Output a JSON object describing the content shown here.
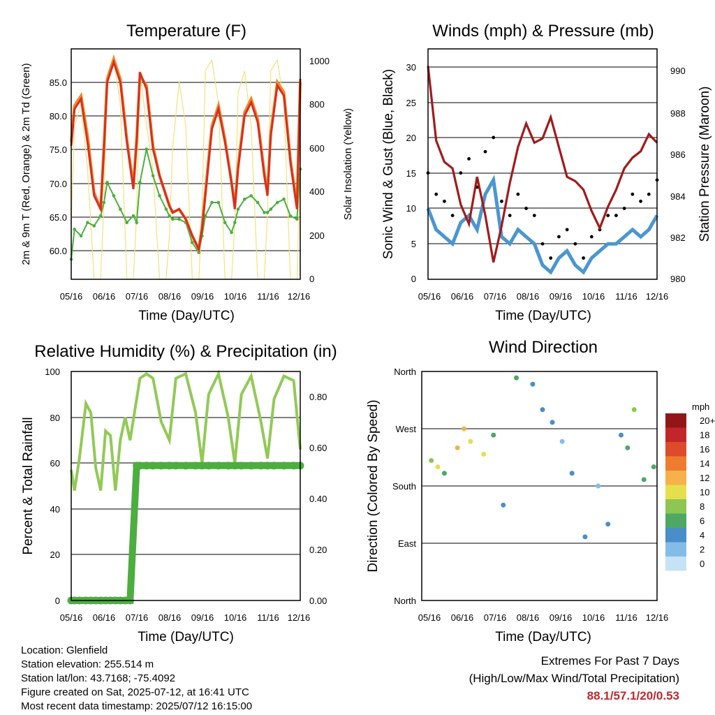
{
  "x_ticks": [
    "05/16",
    "06/16",
    "07/16",
    "08/16",
    "09/16",
    "10/16",
    "11/16",
    "12/16"
  ],
  "x_title": "Time (Day/UTC)",
  "colors": {
    "temp_2m": "#d82f1e",
    "temp_9m": "#f08a2a",
    "dewpoint": "#4cae3f",
    "solar": "#f6e07a",
    "wind": "#4a96d1",
    "gust": "#000000",
    "pressure": "#a01b1b",
    "rh": "#92c957",
    "precip": "#4cae3f"
  },
  "panels": {
    "temperature": {
      "title": "Temperature (F)",
      "ylabel": "2m & 9m T (Red, Orange) & 2m Td (Green)",
      "ylabel2": "Solar Insolation (Yellow)",
      "y_ticks": [
        "60.0",
        "65.0",
        "70.0",
        "75.0",
        "80.0",
        "85.0"
      ],
      "y2_ticks": [
        "0",
        "200",
        "400",
        "600",
        "800",
        "1000"
      ]
    },
    "winds": {
      "title": "Winds (mph) & Pressure (mb)",
      "ylabel": "Sonic Wind & Gust (Blue, Black)",
      "ylabel2": "Station Pressure (Maroon)",
      "y_ticks": [
        "0",
        "5",
        "10",
        "15",
        "20",
        "25",
        "30"
      ],
      "y2_ticks": [
        "980",
        "982",
        "984",
        "986",
        "988",
        "990"
      ]
    },
    "humidity": {
      "title": "Relative Humidity (%) & Precipitation (in)",
      "ylabel": "Percent & Total Rainfall",
      "y_ticks": [
        "0",
        "20",
        "40",
        "60",
        "80",
        "100"
      ],
      "y2_ticks": [
        "0.00",
        "0.20",
        "0.40",
        "0.60",
        "0.80"
      ]
    },
    "direction": {
      "title": "Wind Direction",
      "ylabel": "Direction (Colored By Speed)",
      "y_ticks": [
        "North",
        "East",
        "South",
        "West",
        "North"
      ],
      "legend_title": "mph",
      "legend_labels": [
        "0",
        "2",
        "4",
        "6",
        "8",
        "10",
        "12",
        "14",
        "16",
        "18",
        "20+"
      ],
      "legend_colors": [
        "#c6e3f5",
        "#83bde7",
        "#4a8ec9",
        "#4da864",
        "#8dc653",
        "#e6df4d",
        "#f7b14a",
        "#ef7c2e",
        "#de4a2c",
        "#c3262a",
        "#921617"
      ]
    }
  },
  "footer": {
    "location": "Location: Glenfield",
    "elevation": "Station elevation: 255.514 m",
    "latlon": "Station lat/lon: 43.7168; -75.4092",
    "created": "Figure created on Sat, 2025-07-12, at 16:41 UTC",
    "recent": "Most recent data timestamp: 2025/07/12 16:15:00"
  },
  "extremes": {
    "line1": "Extremes For Past 7 Days",
    "line2": "(High/Low/Max Wind/Total Precipitation)",
    "values": "88.1/57.1/20/0.53"
  },
  "chart_data": [
    {
      "type": "line",
      "title": "Temperature (F)",
      "xlabel": "Time (Day/UTC)",
      "x": [
        0,
        0.1,
        0.3,
        0.5,
        0.7,
        0.9,
        1,
        1.1,
        1.3,
        1.5,
        1.7,
        1.9,
        2,
        2.1,
        2.3,
        2.5,
        2.7,
        2.9,
        3,
        3.1,
        3.3,
        3.5,
        3.7,
        3.9,
        4,
        4.1,
        4.3,
        4.5,
        4.7,
        4.9,
        5,
        5.1,
        5.3,
        5.5,
        5.7,
        5.9,
        6,
        6.1,
        6.3,
        6.5,
        6.7,
        6.9,
        7
      ],
      "series": [
        {
          "name": "2m T",
          "values": [
            75.5,
            81,
            82.5,
            76,
            68,
            66,
            75,
            85,
            88,
            85,
            76,
            69,
            76,
            86.5,
            84,
            75,
            71,
            68,
            66.5,
            65.5,
            66,
            64.5,
            62,
            60,
            63,
            68,
            78,
            81,
            76,
            70,
            66,
            72,
            80,
            82,
            79,
            71,
            68,
            77,
            84.5,
            83,
            73,
            66,
            85.5
          ]
        },
        {
          "name": "9m T",
          "values": [
            76,
            81.5,
            83,
            77,
            68.5,
            66,
            75.5,
            85.5,
            88.5,
            85.5,
            76.5,
            69.5,
            76.5,
            86,
            84.5,
            75.5,
            71,
            68,
            66.5,
            65.5,
            66,
            64.5,
            62,
            60,
            63.5,
            68.5,
            78.5,
            81.5,
            76.5,
            70,
            66.5,
            72.5,
            80.5,
            82.5,
            79.5,
            71.5,
            68.5,
            77.5,
            85,
            83.5,
            73.5,
            66.5,
            85
          ]
        },
        {
          "name": "2m Td",
          "values": [
            58.5,
            63,
            62,
            64,
            63.5,
            65,
            67,
            70,
            68,
            66,
            64,
            65,
            64,
            70,
            75,
            71,
            68,
            66,
            65,
            64.5,
            64.5,
            64,
            61,
            59.5,
            62,
            65,
            67,
            67,
            64,
            62.5,
            64,
            66,
            67.5,
            68,
            67,
            65.5,
            65.5,
            66,
            67,
            67.5,
            65,
            64.5,
            72
          ]
        },
        {
          "name": "Solar",
          "values": [
            250,
            700,
            800,
            500,
            0,
            0,
            350,
            900,
            1000,
            800,
            0,
            0,
            300,
            950,
            700,
            500,
            0,
            0,
            200,
            600,
            900,
            700,
            0,
            0,
            300,
            950,
            1000,
            800,
            0,
            0,
            250,
            850,
            950,
            700,
            0,
            0,
            300,
            950,
            1000,
            800,
            0,
            0,
            500
          ]
        }
      ],
      "ylim": [
        55.5,
        90
      ],
      "y2lim": [
        0,
        1050
      ]
    },
    {
      "type": "line",
      "title": "Winds (mph) & Pressure (mb)",
      "xlabel": "Time (Day/UTC)",
      "x": [
        0,
        0.25,
        0.5,
        0.75,
        1,
        1.25,
        1.5,
        1.75,
        2,
        2.25,
        2.5,
        2.75,
        3,
        3.25,
        3.5,
        3.75,
        4,
        4.25,
        4.5,
        4.75,
        5,
        5.25,
        5.5,
        5.75,
        6,
        6.25,
        6.5,
        6.75,
        7
      ],
      "series": [
        {
          "name": "Sonic Wind",
          "values": [
            10,
            7,
            6,
            5,
            8,
            9,
            7,
            12,
            14,
            6,
            5,
            7,
            6,
            5,
            2,
            1,
            3,
            4,
            2,
            1,
            3,
            4,
            5,
            5,
            6,
            7,
            6,
            7,
            9
          ]
        },
        {
          "name": "Gust",
          "values": [
            15,
            12,
            11,
            9,
            15,
            17,
            13,
            18,
            20,
            11,
            9,
            12,
            10,
            9,
            5,
            3,
            6,
            7,
            5,
            3,
            6,
            7,
            9,
            9,
            10,
            12,
            11,
            12,
            14
          ]
        },
        {
          "name": "Station Pressure",
          "values": [
            990,
            986.5,
            985.5,
            985.2,
            983.5,
            982.6,
            984.8,
            983,
            980.8,
            982.5,
            984.5,
            986.2,
            987.3,
            986.4,
            986.6,
            987.6,
            986.2,
            984.8,
            984.6,
            984.2,
            983.2,
            982.4,
            983.4,
            984.2,
            985.2,
            985.7,
            986,
            986.8,
            986.4
          ]
        }
      ],
      "ylim": [
        0,
        32.5
      ],
      "y2lim": [
        980,
        990.8
      ]
    },
    {
      "type": "line",
      "title": "Relative Humidity (%) & Precipitation (in)",
      "xlabel": "Time (Day/UTC)",
      "x": [
        0,
        0.1,
        0.25,
        0.45,
        0.6,
        0.75,
        0.9,
        1.05,
        1.2,
        1.35,
        1.5,
        1.65,
        1.8,
        2,
        2.1,
        2.3,
        2.5,
        2.75,
        3,
        3.2,
        3.5,
        3.8,
        4,
        4.2,
        4.5,
        4.8,
        5,
        5.2,
        5.5,
        5.8,
        6,
        6.2,
        6.5,
        6.8,
        7
      ],
      "series": [
        {
          "name": "Relative Humidity",
          "values": [
            57,
            48,
            62,
            86,
            82,
            58,
            48,
            74,
            72,
            48,
            70,
            80,
            70,
            88,
            97,
            99,
            97,
            78,
            70,
            97,
            99,
            82,
            60,
            90,
            99,
            80,
            60,
            90,
            98,
            78,
            62,
            88,
            98,
            96,
            66
          ]
        },
        {
          "name": "Total Precipitation",
          "values": [
            0,
            0,
            0,
            0,
            0,
            0,
            0,
            0,
            0,
            0,
            0,
            0,
            0,
            0.53,
            0.53,
            0.53,
            0.53,
            0.53,
            0.53,
            0.53,
            0.53,
            0.53,
            0.53,
            0.53,
            0.53,
            0.53,
            0.53,
            0.53,
            0.53,
            0.53,
            0.53,
            0.53,
            0.53,
            0.53,
            0.53
          ]
        }
      ],
      "ylim": [
        0,
        100
      ],
      "y2lim": [
        0,
        0.9
      ]
    },
    {
      "type": "scatter",
      "title": "Wind Direction",
      "xlabel": "Time (Day/UTC)",
      "ylabel": "Direction (Colored By Speed)",
      "x": [
        0.1,
        0.3,
        0.5,
        0.9,
        1.1,
        1.3,
        1.7,
        2,
        2.3,
        2.7,
        3.2,
        3.5,
        3.8,
        4.1,
        4.4,
        4.8,
        5.2,
        5.5,
        5.9,
        6.1,
        6.3,
        6.6,
        6.9
      ],
      "y": [
        220,
        210,
        200,
        240,
        270,
        250,
        230,
        260,
        150,
        350,
        340,
        300,
        280,
        250,
        200,
        100,
        180,
        120,
        260,
        240,
        300,
        190,
        210
      ],
      "speed": [
        8,
        10,
        6,
        12,
        12,
        9,
        10,
        6,
        3,
        6,
        4,
        3,
        3,
        2,
        4,
        3,
        2,
        4,
        3,
        5,
        8,
        5,
        6
      ],
      "ylim": [
        0,
        360
      ]
    }
  ]
}
